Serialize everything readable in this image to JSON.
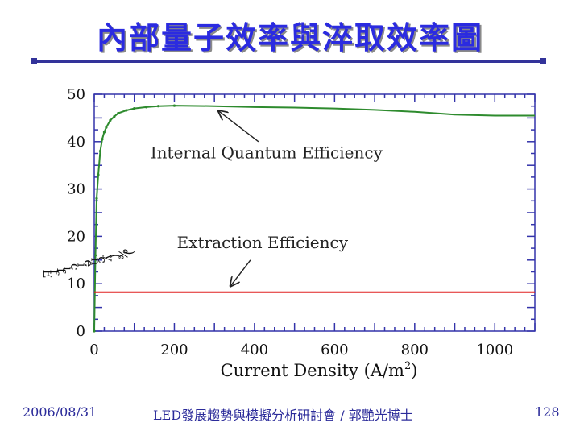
{
  "slide": {
    "title": "內部量子效率與淬取效率圖",
    "footer_date": "2006/08/31",
    "footer_text": "LED發展趨勢與模擬分析研討會 / 郭艷光博士",
    "page_number": "128"
  },
  "colors": {
    "title": "#2b2be0",
    "accent": "#33339a",
    "iqe": "#2e8b2e",
    "extraction": "#e02020",
    "axis": "#3333aa"
  },
  "chart_data": {
    "type": "line",
    "title": "",
    "xlabel_main": "Current Density (A/m",
    "xlabel_sup": "2",
    "xlabel_end": ")",
    "ylabel_chars": [
      "E",
      "f",
      "f",
      "i",
      "c",
      "i",
      "e",
      "n",
      "c",
      "y",
      "(",
      "%",
      ")"
    ],
    "xlim": [
      0,
      1100
    ],
    "ylim": [
      0,
      50
    ],
    "xticks": [
      0,
      200,
      400,
      600,
      800,
      1000
    ],
    "yticks": [
      0,
      10,
      20,
      30,
      40,
      50
    ],
    "xtick_labels": [
      "0",
      "200",
      "400",
      "600",
      "800",
      "1000"
    ],
    "ytick_labels": [
      "0",
      "10",
      "20",
      "30",
      "40",
      "50"
    ],
    "grid": false,
    "series": [
      {
        "name": "Internal Quantum Efficiency",
        "color": "#2e8b2e",
        "x": [
          0,
          3,
          6,
          10,
          15,
          20,
          25,
          30,
          40,
          50,
          60,
          80,
          100,
          130,
          160,
          200,
          300,
          400,
          500,
          600,
          700,
          800,
          900,
          1000,
          1100
        ],
        "y": [
          0,
          16,
          28,
          33,
          38,
          40.5,
          42,
          43,
          44.5,
          45.3,
          46,
          46.6,
          47,
          47.3,
          47.5,
          47.6,
          47.5,
          47.3,
          47.2,
          47,
          46.7,
          46.3,
          45.7,
          45.5,
          45.5
        ]
      },
      {
        "name": "Extraction Efficiency",
        "color": "#e02020",
        "x": [
          0,
          1100
        ],
        "y": [
          8.2,
          8.2
        ]
      }
    ],
    "annotations": [
      {
        "text": "Internal Quantum Efficiency",
        "x": 430,
        "y": 36.5,
        "arrow_from": [
          410,
          40
        ],
        "arrow_to": [
          310,
          46.5
        ]
      },
      {
        "text": "Extraction Efficiency",
        "x": 420,
        "y": 17.5,
        "arrow_from": [
          390,
          15
        ],
        "arrow_to": [
          340,
          9.5
        ]
      }
    ]
  }
}
